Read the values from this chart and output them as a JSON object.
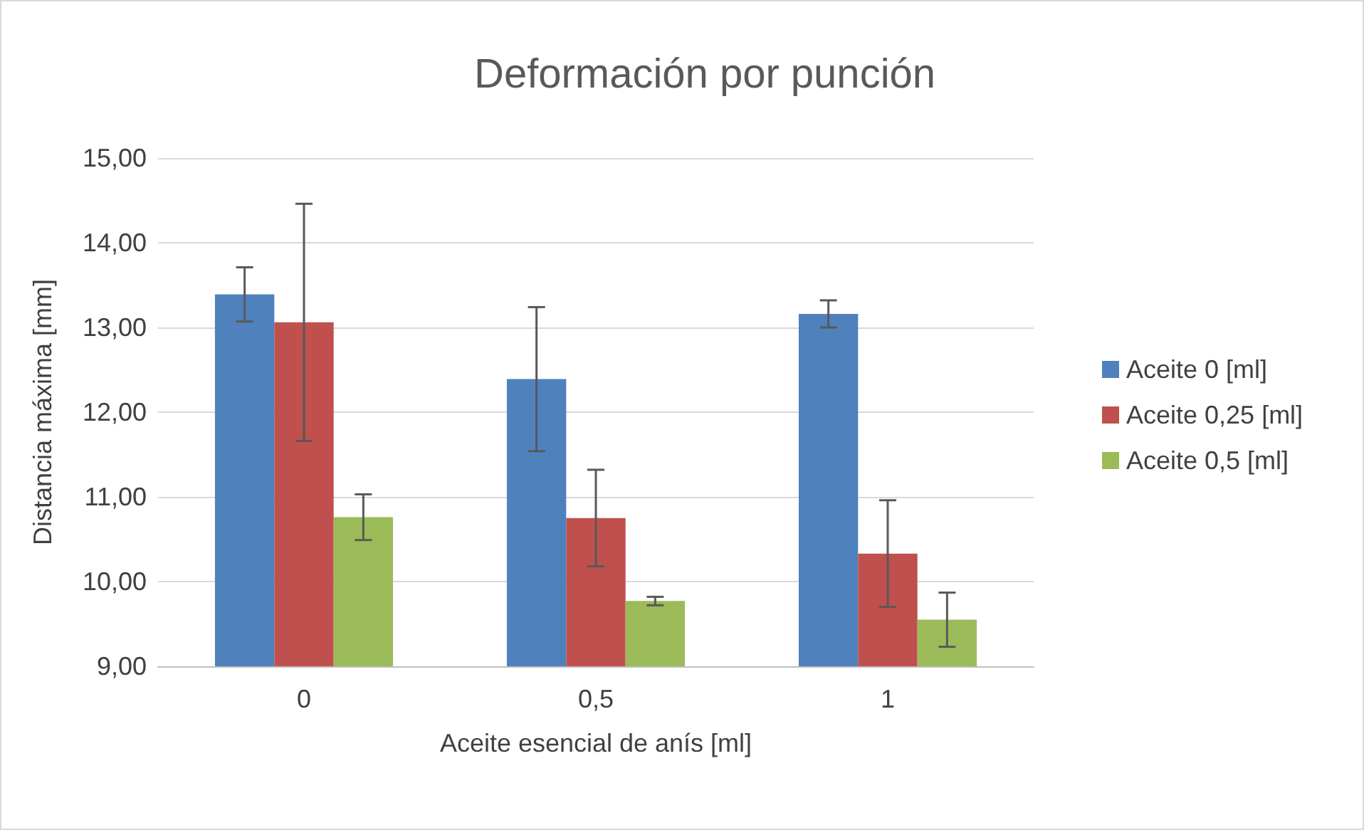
{
  "chart_data": {
    "type": "bar",
    "title": "Deformación por punción",
    "xlabel": "Aceite esencial de anís [ml]",
    "ylabel": "Distancia máxima [mm]",
    "categories": [
      "0",
      "0,5",
      "1"
    ],
    "series": [
      {
        "name": "Aceite 0 [ml]",
        "color": "#4f81bd",
        "values": [
          13.39,
          12.39,
          13.16
        ],
        "errors": [
          0.32,
          0.85,
          0.16
        ]
      },
      {
        "name": "Aceite 0,25 [ml]",
        "color": "#c0504d",
        "values": [
          13.06,
          10.75,
          10.33
        ],
        "errors": [
          1.4,
          0.57,
          0.63
        ]
      },
      {
        "name": "Aceite 0,5 [ml]",
        "color": "#9bbb59",
        "values": [
          10.76,
          9.77,
          9.55
        ],
        "errors": [
          0.27,
          0.05,
          0.32
        ]
      }
    ],
    "ylim": [
      9,
      15
    ],
    "yticks": [
      {
        "value": 9,
        "label": "9,00"
      },
      {
        "value": 10,
        "label": "10,00"
      },
      {
        "value": 11,
        "label": "11,00"
      },
      {
        "value": 12,
        "label": "12,00"
      },
      {
        "value": 13,
        "label": "13,00"
      },
      {
        "value": 14,
        "label": "14,00"
      },
      {
        "value": 15,
        "label": "15,00"
      }
    ],
    "grid": "y",
    "legend": "right"
  }
}
